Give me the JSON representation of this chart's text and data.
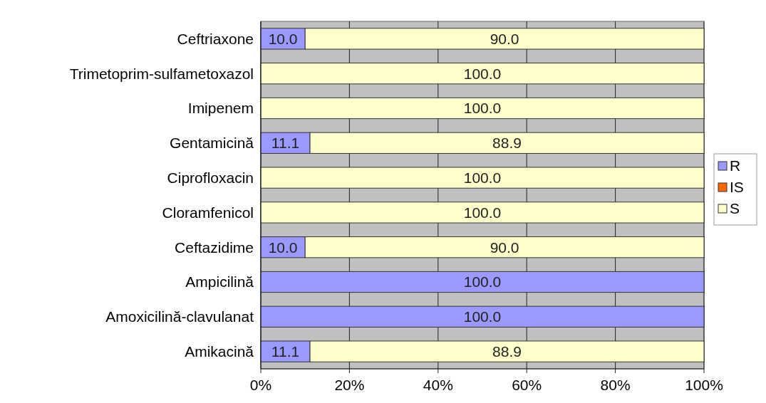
{
  "chart_data": {
    "type": "bar",
    "orientation": "horizontal",
    "stacked": true,
    "categories": [
      "Ceftriaxone",
      "Trimetoprim-sulfametoxazol",
      "Imipenem",
      "Gentamicină",
      "Ciprofloxacin",
      "Cloramfenicol",
      "Ceftazidime",
      "Ampicilină",
      "Amoxicilină-clavulanat",
      "Amikacină"
    ],
    "series": [
      {
        "name": "R",
        "color": "#9999ff",
        "values": [
          10.0,
          0,
          0,
          11.1,
          0,
          0,
          10.0,
          100,
          100,
          11.1
        ],
        "value_labels": [
          "10.0",
          null,
          null,
          "11.1",
          null,
          null,
          "10.0",
          "100.0",
          "100.0",
          "11.1"
        ]
      },
      {
        "name": "IS",
        "color": "#ff6600",
        "values": [
          0,
          0,
          0,
          0,
          0,
          0,
          0,
          0,
          0,
          0
        ],
        "value_labels": [
          null,
          null,
          null,
          null,
          null,
          null,
          null,
          null,
          null,
          null
        ]
      },
      {
        "name": "S",
        "color": "#ffffcc",
        "values": [
          90.0,
          100,
          100,
          88.9,
          100,
          100,
          90.0,
          0,
          0,
          88.9
        ],
        "value_labels": [
          "90.0",
          "100.0",
          "100.0",
          "88.9",
          "100.0",
          "100.0",
          "90.0",
          null,
          null,
          "88.9"
        ]
      }
    ],
    "xlim": [
      0,
      100
    ],
    "xticks": [
      {
        "value": 0,
        "label": "0%"
      },
      {
        "value": 20,
        "label": "20%"
      },
      {
        "value": 40,
        "label": "40%"
      },
      {
        "value": 60,
        "label": "60%"
      },
      {
        "value": 80,
        "label": "80%"
      },
      {
        "value": 100,
        "label": "100%"
      }
    ],
    "grid": "x",
    "legend": "right"
  }
}
